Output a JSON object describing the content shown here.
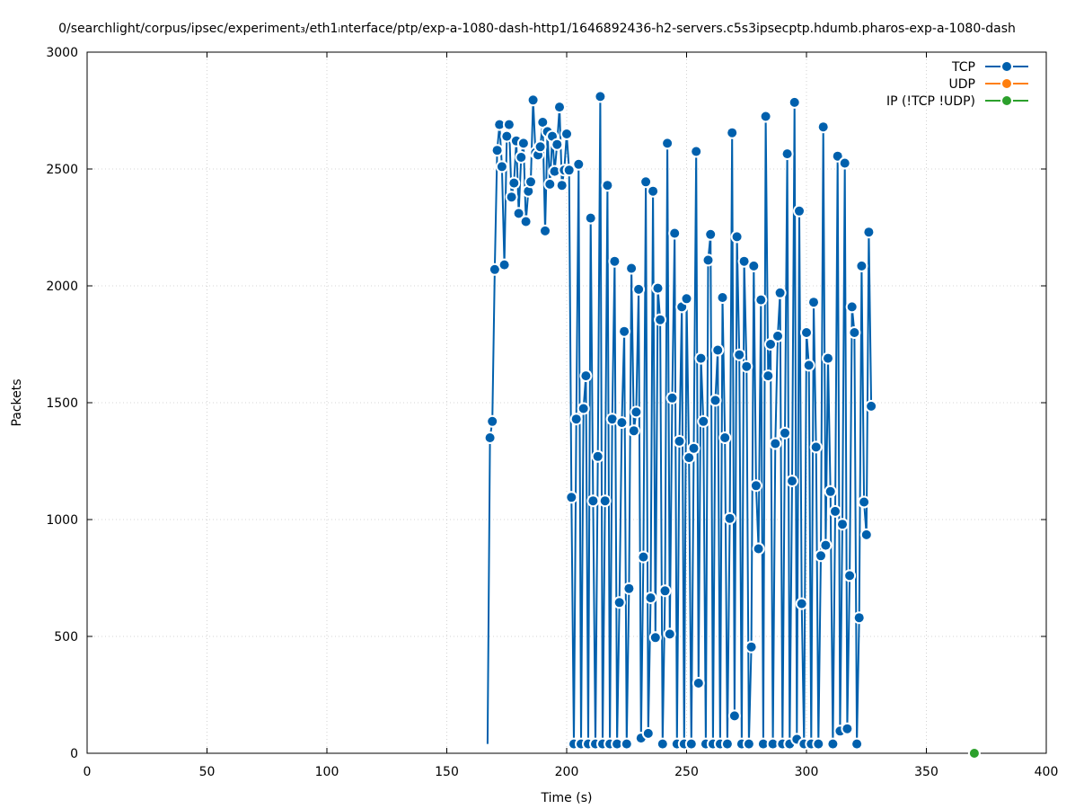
{
  "chart_data": {
    "type": "line",
    "title": "0/searchlight/corpus/ipsec/experiment₃/eth1ᵢnterface/ptp/exp-a-1080-dash-http1/1646892436-h2-servers.c5s3ipsecptp.hdumb.pharos-exp-a-1080-dash",
    "xlabel": "Time (s)",
    "ylabel": "Packets",
    "xlim": [
      0,
      400
    ],
    "ylim": [
      0,
      3000
    ],
    "x_ticks": [
      "0",
      "50",
      "100",
      "150",
      "200",
      "250",
      "300",
      "350",
      "400"
    ],
    "y_ticks": [
      "0",
      "500",
      "1000",
      "1500",
      "2000",
      "2500",
      "3000"
    ],
    "grid": true,
    "legend_position": "top-right",
    "colors": {
      "tcp": "#0060ad",
      "udp": "#ff7f0e",
      "ip": "#2ca02c"
    },
    "series": [
      {
        "name": "TCP",
        "points": [
          [
            167,
            40
          ],
          [
            168,
            1350
          ],
          [
            169,
            1420
          ],
          [
            170,
            2070
          ],
          [
            171,
            2580
          ],
          [
            172,
            2690
          ],
          [
            173,
            2510
          ],
          [
            174,
            2090
          ],
          [
            175,
            2640
          ],
          [
            176,
            2690
          ],
          [
            177,
            2380
          ],
          [
            178,
            2440
          ],
          [
            179,
            2620
          ],
          [
            180,
            2310
          ],
          [
            181,
            2550
          ],
          [
            182,
            2610
          ],
          [
            183,
            2275
          ],
          [
            184,
            2405
          ],
          [
            185,
            2445
          ],
          [
            186,
            2795
          ],
          [
            187,
            2570
          ],
          [
            188,
            2560
          ],
          [
            189,
            2595
          ],
          [
            190,
            2700
          ],
          [
            191,
            2235
          ],
          [
            192,
            2660
          ],
          [
            193,
            2435
          ],
          [
            194,
            2640
          ],
          [
            195,
            2490
          ],
          [
            196,
            2605
          ],
          [
            197,
            2765
          ],
          [
            198,
            2430
          ],
          [
            199,
            2495
          ],
          [
            200,
            2650
          ],
          [
            201,
            2495
          ],
          [
            202,
            1095
          ],
          [
            203,
            40
          ],
          [
            204,
            1430
          ],
          [
            205,
            2520
          ],
          [
            206,
            40
          ],
          [
            207,
            1475
          ],
          [
            208,
            1615
          ],
          [
            209,
            40
          ],
          [
            210,
            2290
          ],
          [
            211,
            1080
          ],
          [
            212,
            40
          ],
          [
            213,
            1270
          ],
          [
            214,
            2810
          ],
          [
            215,
            40
          ],
          [
            216,
            1080
          ],
          [
            217,
            2430
          ],
          [
            218,
            40
          ],
          [
            219,
            1430
          ],
          [
            220,
            2105
          ],
          [
            221,
            40
          ],
          [
            222,
            645
          ],
          [
            223,
            1415
          ],
          [
            224,
            1805
          ],
          [
            225,
            40
          ],
          [
            226,
            705
          ],
          [
            227,
            2075
          ],
          [
            228,
            1380
          ],
          [
            229,
            1460
          ],
          [
            230,
            1985
          ],
          [
            231,
            65
          ],
          [
            232,
            840
          ],
          [
            233,
            2445
          ],
          [
            234,
            85
          ],
          [
            235,
            665
          ],
          [
            236,
            2405
          ],
          [
            237,
            495
          ],
          [
            238,
            1990
          ],
          [
            239,
            1855
          ],
          [
            240,
            40
          ],
          [
            241,
            695
          ],
          [
            242,
            2610
          ],
          [
            243,
            510
          ],
          [
            244,
            1520
          ],
          [
            245,
            2225
          ],
          [
            246,
            40
          ],
          [
            247,
            1335
          ],
          [
            248,
            1910
          ],
          [
            249,
            40
          ],
          [
            250,
            1945
          ],
          [
            251,
            1265
          ],
          [
            252,
            40
          ],
          [
            253,
            1305
          ],
          [
            254,
            2575
          ],
          [
            255,
            300
          ],
          [
            256,
            1690
          ],
          [
            257,
            1420
          ],
          [
            258,
            40
          ],
          [
            259,
            2110
          ],
          [
            260,
            2220
          ],
          [
            261,
            40
          ],
          [
            262,
            1510
          ],
          [
            263,
            1725
          ],
          [
            264,
            40
          ],
          [
            265,
            1950
          ],
          [
            266,
            1350
          ],
          [
            267,
            40
          ],
          [
            268,
            1005
          ],
          [
            269,
            2655
          ],
          [
            270,
            160
          ],
          [
            271,
            2210
          ],
          [
            272,
            1705
          ],
          [
            273,
            40
          ],
          [
            274,
            2105
          ],
          [
            275,
            1655
          ],
          [
            276,
            40
          ],
          [
            277,
            455
          ],
          [
            278,
            2085
          ],
          [
            279,
            1145
          ],
          [
            280,
            875
          ],
          [
            281,
            1940
          ],
          [
            282,
            40
          ],
          [
            283,
            2725
          ],
          [
            284,
            1615
          ],
          [
            285,
            1750
          ],
          [
            286,
            40
          ],
          [
            287,
            1325
          ],
          [
            288,
            1785
          ],
          [
            289,
            1970
          ],
          [
            290,
            40
          ],
          [
            291,
            1370
          ],
          [
            292,
            2565
          ],
          [
            293,
            40
          ],
          [
            294,
            1165
          ],
          [
            295,
            2785
          ],
          [
            296,
            60
          ],
          [
            297,
            2320
          ],
          [
            298,
            640
          ],
          [
            299,
            40
          ],
          [
            300,
            1800
          ],
          [
            301,
            1660
          ],
          [
            302,
            40
          ],
          [
            303,
            1930
          ],
          [
            304,
            1310
          ],
          [
            305,
            40
          ],
          [
            306,
            845
          ],
          [
            307,
            2680
          ],
          [
            308,
            890
          ],
          [
            309,
            1690
          ],
          [
            310,
            1120
          ],
          [
            311,
            40
          ],
          [
            312,
            1035
          ],
          [
            313,
            2555
          ],
          [
            314,
            95
          ],
          [
            315,
            980
          ],
          [
            316,
            2525
          ],
          [
            317,
            105
          ],
          [
            318,
            760
          ],
          [
            319,
            1910
          ],
          [
            320,
            1800
          ],
          [
            321,
            40
          ],
          [
            322,
            580
          ],
          [
            323,
            2085
          ],
          [
            324,
            1075
          ],
          [
            325,
            935
          ],
          [
            326,
            2230
          ],
          [
            327,
            1485
          ]
        ]
      },
      {
        "name": "UDP",
        "points": []
      },
      {
        "name": "IP (!TCP  !UDP)",
        "points": [
          [
            370,
            0
          ]
        ]
      }
    ]
  }
}
